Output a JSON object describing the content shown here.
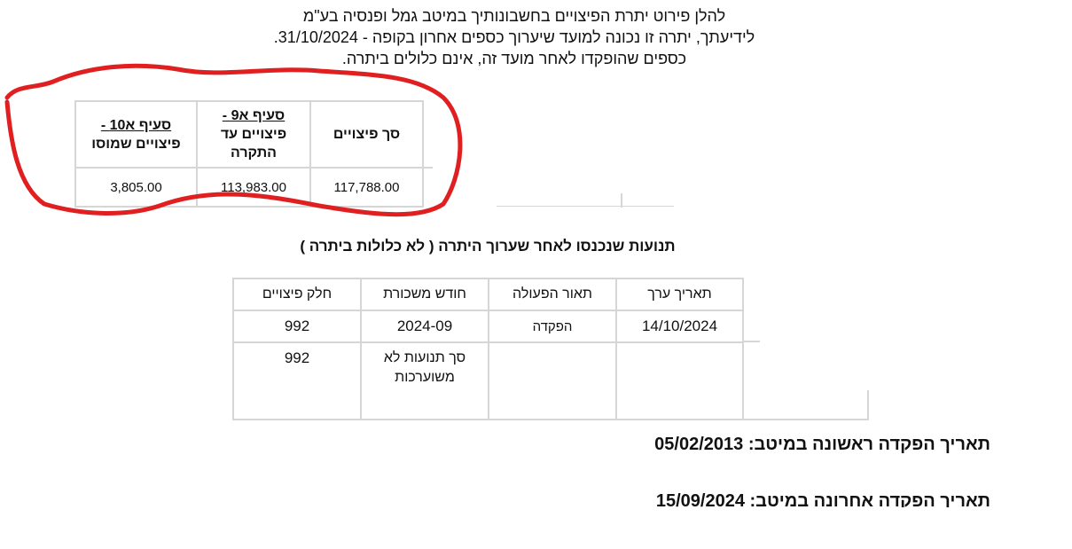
{
  "intro": {
    "line1": "להלן פירוט יתרת הפיצויים בחשבונותיך במיטב גמל ופנסיה בע\"מ",
    "line2": "לידיעתך, יתרה זו נכונה למועד שיערוך כספים אחרון בקופה - 31/10/2024.",
    "line3": "כספים שהופקדו לאחר מועד זה, אינם כלולים ביתרה."
  },
  "severance_table": {
    "headers": [
      {
        "title": "סך פיצויים",
        "subtitle": ""
      },
      {
        "title": "סעיף א9 -",
        "subtitle": "פיצויים עד התקרה"
      },
      {
        "title": "סעיף א10 -",
        "subtitle": "פיצויים שמוסו"
      }
    ],
    "values": [
      "117,788.00",
      "113,983.00",
      "3,805.00"
    ]
  },
  "annotation": {
    "color": "#e02020",
    "shape": "freehand-circle"
  },
  "transactions": {
    "title": "תנועות שנכנסו לאחר שערוך היתרה ( לא כלולות ביתרה )",
    "headers": [
      "תאריך ערך",
      "תאור הפעולה",
      "חודש משכורת",
      "חלק פיצויים"
    ],
    "rows": [
      [
        "14/10/2024",
        "הפקדה",
        "2024-09",
        "992"
      ],
      [
        "",
        "",
        "סך תנועות לא משוערכות",
        "992"
      ]
    ]
  },
  "footer": {
    "first_deposit": "תאריך הפקדה ראשונה במיטב: 05/02/2013",
    "last_deposit": "תאריך הפקדה אחרונה במיטב: 15/09/2024"
  }
}
